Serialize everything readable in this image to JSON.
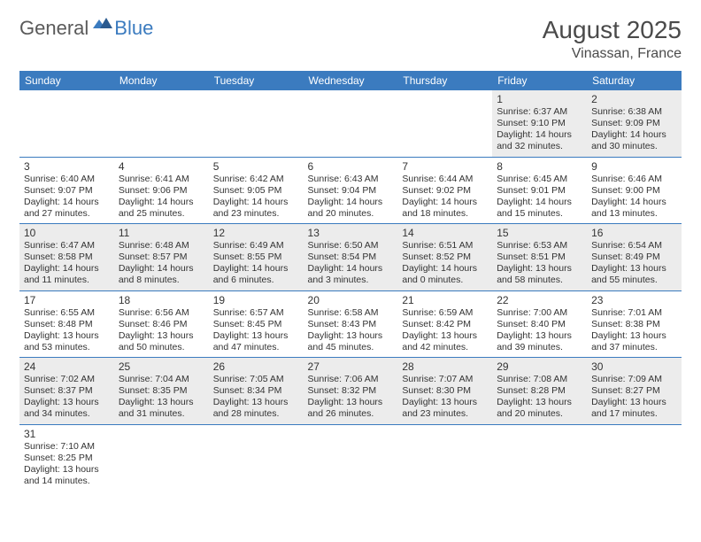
{
  "logo": {
    "text_dark": "General",
    "text_blue": "Blue"
  },
  "title": "August 2025",
  "location": "Vinassan, France",
  "colors": {
    "header_bg": "#3b7bbf",
    "header_text": "#ffffff",
    "row_alt_bg": "#ececec",
    "border": "#3b7bbf",
    "title_color": "#4a4a4a",
    "logo_dark": "#5a5a5a",
    "logo_blue": "#3b7bbf"
  },
  "day_headers": [
    "Sunday",
    "Monday",
    "Tuesday",
    "Wednesday",
    "Thursday",
    "Friday",
    "Saturday"
  ],
  "weeks": [
    [
      null,
      null,
      null,
      null,
      null,
      {
        "d": "1",
        "sr": "6:37 AM",
        "ss": "9:10 PM",
        "dl": "14 hours and 32 minutes."
      },
      {
        "d": "2",
        "sr": "6:38 AM",
        "ss": "9:09 PM",
        "dl": "14 hours and 30 minutes."
      }
    ],
    [
      {
        "d": "3",
        "sr": "6:40 AM",
        "ss": "9:07 PM",
        "dl": "14 hours and 27 minutes."
      },
      {
        "d": "4",
        "sr": "6:41 AM",
        "ss": "9:06 PM",
        "dl": "14 hours and 25 minutes."
      },
      {
        "d": "5",
        "sr": "6:42 AM",
        "ss": "9:05 PM",
        "dl": "14 hours and 23 minutes."
      },
      {
        "d": "6",
        "sr": "6:43 AM",
        "ss": "9:04 PM",
        "dl": "14 hours and 20 minutes."
      },
      {
        "d": "7",
        "sr": "6:44 AM",
        "ss": "9:02 PM",
        "dl": "14 hours and 18 minutes."
      },
      {
        "d": "8",
        "sr": "6:45 AM",
        "ss": "9:01 PM",
        "dl": "14 hours and 15 minutes."
      },
      {
        "d": "9",
        "sr": "6:46 AM",
        "ss": "9:00 PM",
        "dl": "14 hours and 13 minutes."
      }
    ],
    [
      {
        "d": "10",
        "sr": "6:47 AM",
        "ss": "8:58 PM",
        "dl": "14 hours and 11 minutes."
      },
      {
        "d": "11",
        "sr": "6:48 AM",
        "ss": "8:57 PM",
        "dl": "14 hours and 8 minutes."
      },
      {
        "d": "12",
        "sr": "6:49 AM",
        "ss": "8:55 PM",
        "dl": "14 hours and 6 minutes."
      },
      {
        "d": "13",
        "sr": "6:50 AM",
        "ss": "8:54 PM",
        "dl": "14 hours and 3 minutes."
      },
      {
        "d": "14",
        "sr": "6:51 AM",
        "ss": "8:52 PM",
        "dl": "14 hours and 0 minutes."
      },
      {
        "d": "15",
        "sr": "6:53 AM",
        "ss": "8:51 PM",
        "dl": "13 hours and 58 minutes."
      },
      {
        "d": "16",
        "sr": "6:54 AM",
        "ss": "8:49 PM",
        "dl": "13 hours and 55 minutes."
      }
    ],
    [
      {
        "d": "17",
        "sr": "6:55 AM",
        "ss": "8:48 PM",
        "dl": "13 hours and 53 minutes."
      },
      {
        "d": "18",
        "sr": "6:56 AM",
        "ss": "8:46 PM",
        "dl": "13 hours and 50 minutes."
      },
      {
        "d": "19",
        "sr": "6:57 AM",
        "ss": "8:45 PM",
        "dl": "13 hours and 47 minutes."
      },
      {
        "d": "20",
        "sr": "6:58 AM",
        "ss": "8:43 PM",
        "dl": "13 hours and 45 minutes."
      },
      {
        "d": "21",
        "sr": "6:59 AM",
        "ss": "8:42 PM",
        "dl": "13 hours and 42 minutes."
      },
      {
        "d": "22",
        "sr": "7:00 AM",
        "ss": "8:40 PM",
        "dl": "13 hours and 39 minutes."
      },
      {
        "d": "23",
        "sr": "7:01 AM",
        "ss": "8:38 PM",
        "dl": "13 hours and 37 minutes."
      }
    ],
    [
      {
        "d": "24",
        "sr": "7:02 AM",
        "ss": "8:37 PM",
        "dl": "13 hours and 34 minutes."
      },
      {
        "d": "25",
        "sr": "7:04 AM",
        "ss": "8:35 PM",
        "dl": "13 hours and 31 minutes."
      },
      {
        "d": "26",
        "sr": "7:05 AM",
        "ss": "8:34 PM",
        "dl": "13 hours and 28 minutes."
      },
      {
        "d": "27",
        "sr": "7:06 AM",
        "ss": "8:32 PM",
        "dl": "13 hours and 26 minutes."
      },
      {
        "d": "28",
        "sr": "7:07 AM",
        "ss": "8:30 PM",
        "dl": "13 hours and 23 minutes."
      },
      {
        "d": "29",
        "sr": "7:08 AM",
        "ss": "8:28 PM",
        "dl": "13 hours and 20 minutes."
      },
      {
        "d": "30",
        "sr": "7:09 AM",
        "ss": "8:27 PM",
        "dl": "13 hours and 17 minutes."
      }
    ],
    [
      {
        "d": "31",
        "sr": "7:10 AM",
        "ss": "8:25 PM",
        "dl": "13 hours and 14 minutes."
      },
      null,
      null,
      null,
      null,
      null,
      null
    ]
  ],
  "labels": {
    "sunrise": "Sunrise:",
    "sunset": "Sunset:",
    "daylight": "Daylight:"
  }
}
